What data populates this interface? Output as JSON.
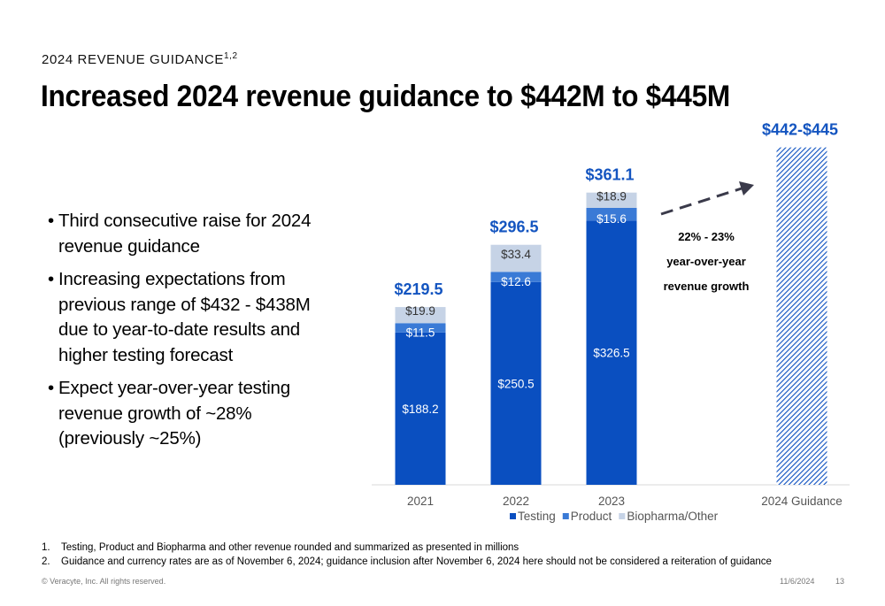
{
  "header": {
    "eyebrow": "2024 REVENUE GUIDANCE",
    "eyebrow_sup": "1,2",
    "title": "Increased 2024 revenue guidance to $442M to $445M"
  },
  "bullets": [
    "Third consecutive raise for 2024 revenue guidance",
    "Increasing expectations from previous range of $432 - $438M due to year-to-date results and higher testing forecast",
    "Expect year-over-year testing revenue growth of ~28% (previously ~25%)"
  ],
  "chart_data": {
    "type": "bar",
    "stacked": true,
    "categories": [
      "2021",
      "2022",
      "2023",
      "2024 Guidance"
    ],
    "series": [
      {
        "name": "Testing",
        "values": [
          188.2,
          250.5,
          326.5,
          null
        ],
        "labels": [
          "$188.2",
          "$250.5",
          "$326.5",
          ""
        ]
      },
      {
        "name": "Product",
        "values": [
          11.5,
          12.6,
          15.6,
          null
        ],
        "labels": [
          "$11.5",
          "$12.6",
          "$15.6",
          ""
        ]
      },
      {
        "name": "Biopharma/Other",
        "values": [
          19.9,
          33.4,
          18.9,
          null
        ],
        "labels": [
          "$19.9",
          "$33.4",
          "$18.9",
          ""
        ]
      }
    ],
    "totals": [
      219.5,
      296.5,
      361.1,
      null
    ],
    "total_labels": [
      "$219.5",
      "$296.5",
      "$361.1",
      ""
    ],
    "guidance": {
      "category": "2024 Guidance",
      "low": 442,
      "high": 445,
      "label": "$442-$445",
      "pattern": "diagonal-hatch"
    },
    "annotation": {
      "lines": [
        "22% - 23%",
        "year-over-year",
        "revenue growth"
      ],
      "arrow": "dashed"
    },
    "colors": {
      "Testing": "#0a4fc0",
      "Product": "#3a7ad6",
      "Biopharma/Other": "#c6d3e6",
      "totals": "#1455c0",
      "guidance": "#0a4fc0"
    },
    "legend": {
      "position": "bottom-center"
    },
    "ylim": [
      0,
      445
    ],
    "grid": false
  },
  "footnotes": [
    {
      "num": "1.",
      "text": "Testing, Product and Biopharma and other revenue rounded and summarized as presented in millions"
    },
    {
      "num": "2.",
      "text": "Guidance and currency rates are as of November 6, 2024; guidance inclusion after November 6, 2024 here should not be considered a reiteration of guidance"
    }
  ],
  "footer": {
    "copyright": "© Veracyte, Inc.  All rights reserved.",
    "date": "11/6/2024",
    "page": "13"
  }
}
